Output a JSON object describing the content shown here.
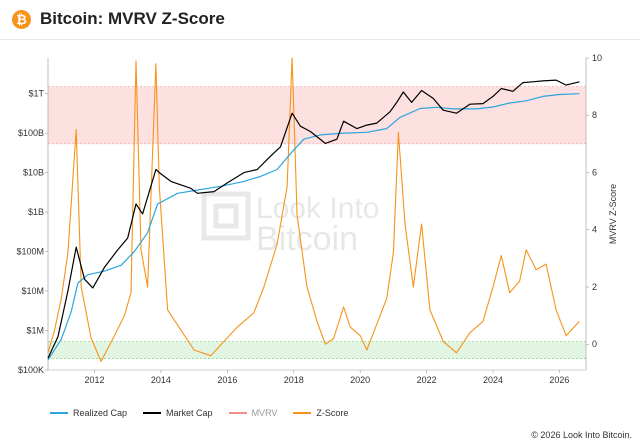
{
  "header": {
    "logo_glyph": "₿",
    "title": "Bitcoin: MVRV Z-Score"
  },
  "colors": {
    "realized_cap": "#2aa6dc",
    "market_cap": "#000000",
    "mvrv": "#f08c8c",
    "zscore": "#f7931a",
    "red_band": "#fde0e0",
    "green_band": "#e2f5e2"
  },
  "watermark": {
    "line1": "Look Into",
    "line2": "Bitcoin"
  },
  "legend": [
    {
      "label": "Realized Cap",
      "color": "#2aa6dc"
    },
    {
      "label": "Market Cap",
      "color": "#000000"
    },
    {
      "label": "MVRV",
      "color": "#f08c8c"
    },
    {
      "label": "Z-Score",
      "color": "#f7931a"
    }
  ],
  "footer": {
    "copyright": "© 2026 Look Into Bitcoin."
  },
  "chart_data": {
    "type": "line",
    "title": "Bitcoin: MVRV Z-Score",
    "x_ticks": [
      "2012",
      "2014",
      "2016",
      "2018",
      "2020",
      "2022",
      "2024",
      "2026"
    ],
    "xlim": [
      2010.6,
      2026.8
    ],
    "y_left": {
      "scale": "log",
      "tick_labels": [
        "$100K",
        "$1M",
        "$10M",
        "$100M",
        "$1B",
        "$10B",
        "$100B",
        "$1T"
      ],
      "tick_values": [
        100000.0,
        1000000.0,
        10000000.0,
        100000000.0,
        1000000000.0,
        10000000000.0,
        100000000000.0,
        1000000000000.0
      ],
      "ylim": [
        100000.0,
        8000000000000.0
      ]
    },
    "y_right": {
      "label": "MVRV Z-Score",
      "tick_labels": [
        "0",
        "2",
        "4",
        "6",
        "8",
        "10"
      ],
      "ylim": [
        -0.9,
        10
      ]
    },
    "bands": [
      {
        "name": "red",
        "axis": "right",
        "from": 7,
        "to": 9
      },
      {
        "name": "green",
        "axis": "right",
        "from": -0.5,
        "to": 0.1
      }
    ],
    "series": [
      {
        "name": "Realized Cap",
        "axis": "left",
        "x": [
          2010.6,
          2011.0,
          2011.3,
          2011.5,
          2011.8,
          2012.3,
          2012.8,
          2013.2,
          2013.6,
          2013.9,
          2014.5,
          2015.0,
          2015.8,
          2016.5,
          2017.0,
          2017.5,
          2017.9,
          2018.3,
          2018.8,
          2019.5,
          2020.2,
          2020.8,
          2021.2,
          2021.8,
          2022.3,
          2022.8,
          2023.5,
          2024.0,
          2024.5,
          2025.0,
          2025.5,
          2026.0,
          2026.6
        ],
        "y": [
          180000.0,
          600000.0,
          3000000.0,
          16000000.0,
          26000000.0,
          32000000.0,
          45000000.0,
          100000000.0,
          300000000.0,
          1600000000.0,
          3000000000.0,
          3500000000.0,
          4500000000.0,
          6000000000.0,
          8000000000.0,
          12000000000.0,
          30000000000.0,
          70000000000.0,
          90000000000.0,
          100000000000.0,
          105000000000.0,
          130000000000.0,
          250000000000.0,
          420000000000.0,
          450000000000.0,
          410000000000.0,
          410000000000.0,
          460000000000.0,
          580000000000.0,
          660000000000.0,
          850000000000.0,
          950000000000.0,
          1000000000000.0
        ]
      },
      {
        "name": "Market Cap",
        "axis": "left",
        "x": [
          2010.6,
          2010.9,
          2011.2,
          2011.45,
          2011.7,
          2011.95,
          2012.3,
          2012.7,
          2013.0,
          2013.25,
          2013.45,
          2013.85,
          2013.95,
          2014.3,
          2014.9,
          2015.1,
          2015.6,
          2016.0,
          2016.5,
          2016.9,
          2017.3,
          2017.6,
          2017.95,
          2018.2,
          2018.5,
          2018.95,
          2019.3,
          2019.5,
          2019.9,
          2020.2,
          2020.5,
          2020.9,
          2021.1,
          2021.3,
          2021.55,
          2021.85,
          2022.2,
          2022.5,
          2022.9,
          2023.3,
          2023.7,
          2024.0,
          2024.25,
          2024.6,
          2024.9,
          2025.2,
          2025.5,
          2025.9,
          2026.2,
          2026.6
        ],
        "y": [
          200000.0,
          700000.0,
          10000000.0,
          130000000.0,
          20000000.0,
          12000000.0,
          40000000.0,
          110000000.0,
          220000000.0,
          1600000000.0,
          900000000.0,
          12000000000.0,
          10000000000.0,
          6000000000.0,
          4000000000.0,
          3000000000.0,
          3300000000.0,
          5500000000.0,
          10000000000.0,
          12000000000.0,
          26000000000.0,
          45000000000.0,
          320000000000.0,
          150000000000.0,
          110000000000.0,
          55000000000.0,
          70000000000.0,
          200000000000.0,
          130000000000.0,
          160000000000.0,
          180000000000.0,
          350000000000.0,
          600000000000.0,
          1100000000000.0,
          600000000000.0,
          1200000000000.0,
          760000000000.0,
          380000000000.0,
          320000000000.0,
          540000000000.0,
          560000000000.0,
          850000000000.0,
          1350000000000.0,
          1150000000000.0,
          1900000000000.0,
          2000000000000.0,
          2100000000000.0,
          2200000000000.0,
          1650000000000.0,
          2000000000000.0
        ]
      },
      {
        "name": "Z-Score",
        "axis": "right",
        "x": [
          2010.6,
          2010.8,
          2011.0,
          2011.2,
          2011.45,
          2011.6,
          2011.9,
          2012.2,
          2012.6,
          2012.9,
          2013.1,
          2013.25,
          2013.4,
          2013.6,
          2013.85,
          2013.95,
          2014.2,
          2014.6,
          2015.0,
          2015.5,
          2015.9,
          2016.3,
          2016.8,
          2017.1,
          2017.5,
          2017.8,
          2017.95,
          2018.1,
          2018.4,
          2018.7,
          2018.95,
          2019.2,
          2019.5,
          2019.7,
          2020.0,
          2020.2,
          2020.5,
          2020.8,
          2021.0,
          2021.15,
          2021.35,
          2021.6,
          2021.85,
          2022.1,
          2022.5,
          2022.9,
          2023.3,
          2023.7,
          2024.0,
          2024.25,
          2024.5,
          2024.8,
          2025.0,
          2025.3,
          2025.6,
          2025.9,
          2026.2,
          2026.6
        ],
        "y": [
          -0.3,
          0.5,
          1.6,
          3.2,
          7.5,
          2.0,
          0.2,
          -0.6,
          0.3,
          1.0,
          1.8,
          9.9,
          3.3,
          2.0,
          9.8,
          5.5,
          1.2,
          0.5,
          -0.2,
          -0.4,
          0.1,
          0.6,
          1.1,
          2.0,
          3.5,
          5.5,
          10.0,
          4.5,
          2.0,
          0.8,
          0.0,
          0.2,
          1.3,
          0.6,
          0.3,
          -0.2,
          0.7,
          1.6,
          3.2,
          7.4,
          4.2,
          2.0,
          4.2,
          1.2,
          0.1,
          -0.3,
          0.4,
          0.8,
          2.0,
          3.1,
          1.8,
          2.2,
          3.3,
          2.6,
          2.8,
          1.2,
          0.3,
          0.8
        ]
      }
    ]
  }
}
